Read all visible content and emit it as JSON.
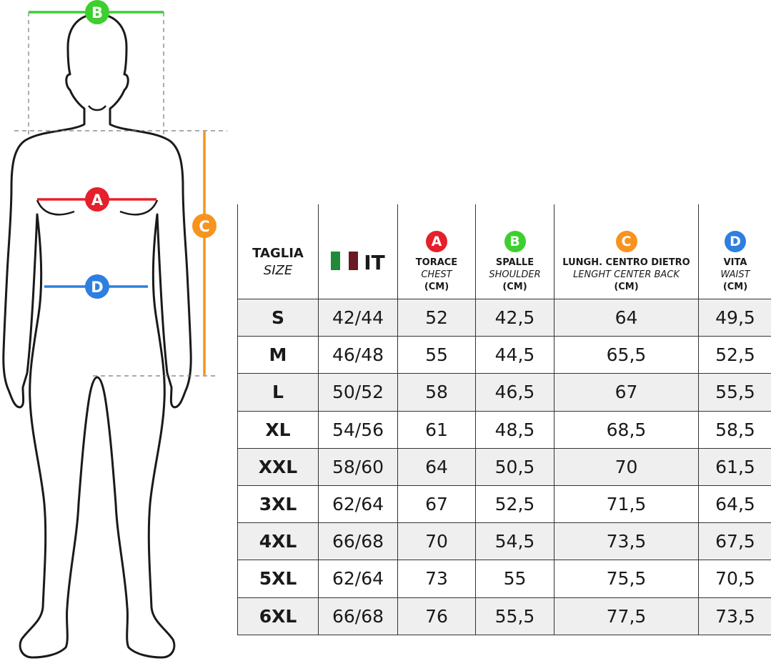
{
  "figure": {
    "labels": [
      "A",
      "B",
      "C",
      "D"
    ]
  },
  "table": {
    "header": [
      {
        "line1": "TAGLIA",
        "line2": "SIZE"
      },
      {
        "label": "IT"
      },
      {
        "badge": "A",
        "line1": "TORACE",
        "line2": "CHEST",
        "unit": "(CM)"
      },
      {
        "badge": "B",
        "line1": "SPALLE",
        "line2": "SHOULDER",
        "unit": "(CM)"
      },
      {
        "badge": "C",
        "line1": "LUNGH. CENTRO DIETRO",
        "line2": "LENGHT CENTER BACK",
        "unit": "(CM)"
      },
      {
        "badge": "D",
        "line1": "VITA",
        "line2": "WAIST",
        "unit": "(CM)"
      }
    ],
    "rows": [
      [
        "S",
        "42/44",
        "52",
        "42,5",
        "64",
        "49,5"
      ],
      [
        "M",
        "46/48",
        "55",
        "44,5",
        "65,5",
        "52,5"
      ],
      [
        "L",
        "50/52",
        "58",
        "46,5",
        "67",
        "55,5"
      ],
      [
        "XL",
        "54/56",
        "61",
        "48,5",
        "68,5",
        "58,5"
      ],
      [
        "XXL",
        "58/60",
        "64",
        "50,5",
        "70",
        "61,5"
      ],
      [
        "3XL",
        "62/64",
        "67",
        "52,5",
        "71,5",
        "64,5"
      ],
      [
        "4XL",
        "66/68",
        "70",
        "54,5",
        "73,5",
        "67,5"
      ],
      [
        "5XL",
        "62/64",
        "73",
        "55",
        "75,5",
        "70,5"
      ],
      [
        "6XL",
        "66/68",
        "76",
        "55,5",
        "77,5",
        "73,5"
      ]
    ]
  }
}
